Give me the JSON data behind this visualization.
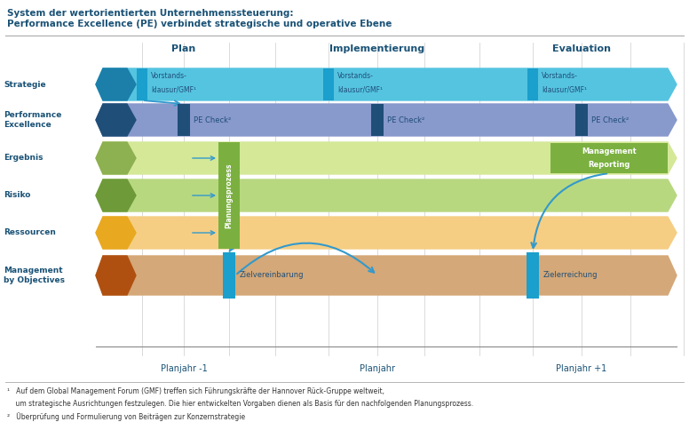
{
  "title_line1": "System der wertorientierten Unternehmenssteuerung:",
  "title_line2": "Performance Excellence (PE) verbindet strategische und operative Ebene",
  "title_color": "#1A5276",
  "phase_labels": [
    "Plan",
    "Implementierung",
    "Evaluation"
  ],
  "phase_color": "#1A5276",
  "row_label_color": "#1A5276",
  "footer_line1": "¹   Auf dem Global Management Forum (GMF) treffen sich Führungskräfte der Hannover Rück-Gruppe weltweit,",
  "footer_line2": "    um strategische Ausrichtungen festzulegen. Die hier entwickelten Vorgaben dienen als Basis für den nachfolgenden Planungsprozess.",
  "footer_line3": "²   Überprüfung und Formulierung von Beiträgen zur Konzernstrategie",
  "col_color": "#CCCCCC",
  "arrow_color": "#3399CC",
  "strat_main": "#55C4E0",
  "strat_dark": "#1B7FAA",
  "pe_main": "#8899CC",
  "pe_dark": "#1F4E79",
  "erg_main": "#D4E898",
  "erg_dark": "#8DB050",
  "risk_main": "#B8D880",
  "risk_dark": "#6E9A3A",
  "res_main": "#F5CE84",
  "res_dark": "#E8A820",
  "mbo_main": "#D4A878",
  "mbo_dark": "#B05010",
  "vorstand_box": "#1B9FCC",
  "pe_check_box": "#1F4E79",
  "plan_box": "#7BB040",
  "ziel_box": "#1B9FCC",
  "mgmt_report_box": "#7BB040"
}
